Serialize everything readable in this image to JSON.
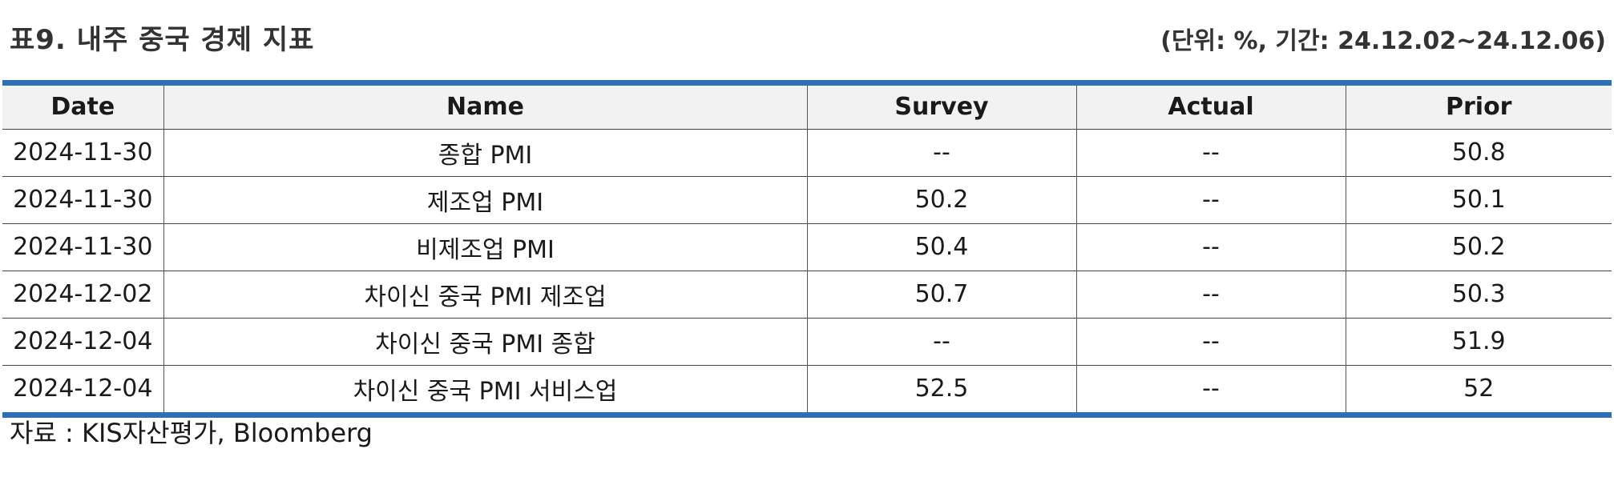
{
  "header": {
    "title": "표9. 내주 중국 경제 지표",
    "unit_note": "(단위: %, 기간: 24.12.02~24.12.06)"
  },
  "table": {
    "columns": [
      "Date",
      "Name",
      "Survey",
      "Actual",
      "Prior"
    ],
    "rows": [
      [
        "2024-11-30",
        "종합 PMI",
        "--",
        "--",
        "50.8"
      ],
      [
        "2024-11-30",
        "제조업 PMI",
        "50.2",
        "--",
        "50.1"
      ],
      [
        "2024-11-30",
        "비제조업 PMI",
        "50.4",
        "--",
        "50.2"
      ],
      [
        "2024-12-02",
        "차이신 중국 PMI 제조업",
        "50.7",
        "--",
        "50.3"
      ],
      [
        "2024-12-04",
        "차이신 중국 PMI 종합",
        "--",
        "--",
        "51.9"
      ],
      [
        "2024-12-04",
        "차이신 중국 PMI 서비스업",
        "52.5",
        "--",
        "52"
      ]
    ]
  },
  "footer": {
    "source": "자료 : KIS자산평가, Bloomberg"
  },
  "colors": {
    "rule": "#2e6fb5",
    "header_bg": "#f2f2f2"
  }
}
